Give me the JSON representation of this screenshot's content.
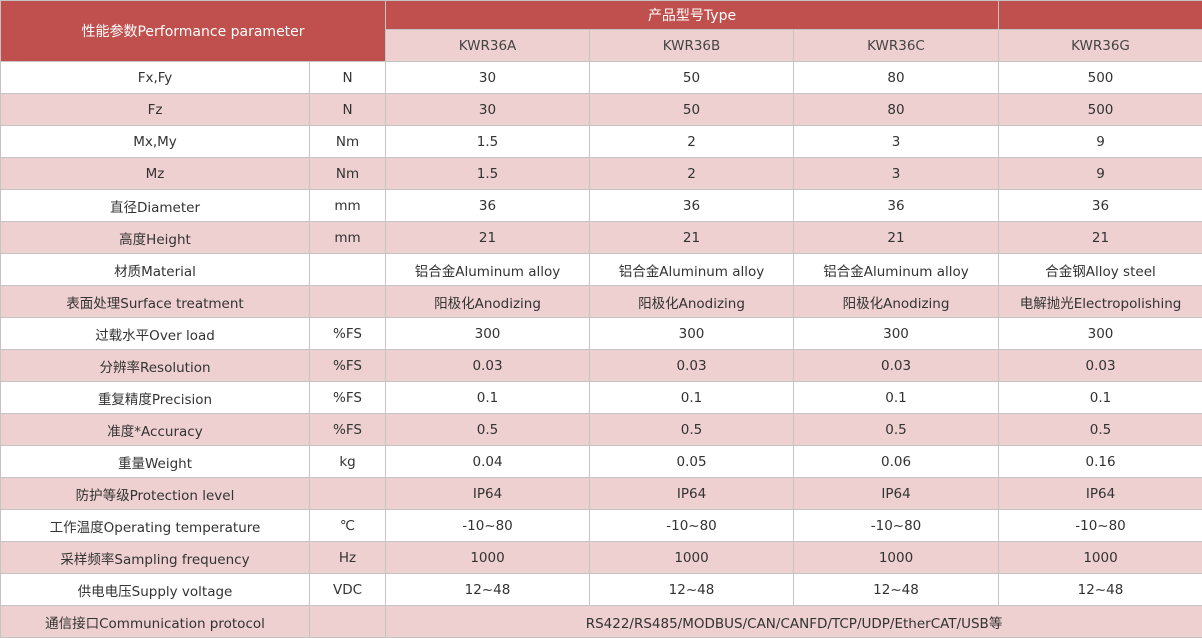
{
  "header": {
    "param_title": "性能参数Performance parameter",
    "type_title": "产品型号Type",
    "models": [
      "KWR36A",
      "KWR36B",
      "KWR36C",
      "KWR36G"
    ]
  },
  "rows": [
    {
      "param": "Fx,Fy",
      "unit": "N",
      "values": [
        "30",
        "50",
        "80",
        "500"
      ]
    },
    {
      "param": "Fz",
      "unit": "N",
      "values": [
        "30",
        "50",
        "80",
        "500"
      ]
    },
    {
      "param": "Mx,My",
      "unit": "Nm",
      "values": [
        "1.5",
        "2",
        "3",
        "9"
      ]
    },
    {
      "param": "Mz",
      "unit": "Nm",
      "values": [
        "1.5",
        "2",
        "3",
        "9"
      ]
    },
    {
      "param": "直径Diameter",
      "unit": "mm",
      "values": [
        "36",
        "36",
        "36",
        "36"
      ]
    },
    {
      "param": "高度Height",
      "unit": "mm",
      "values": [
        "21",
        "21",
        "21",
        "21"
      ]
    },
    {
      "param": "材质Material",
      "unit": "",
      "values": [
        "铝合金Aluminum alloy",
        "铝合金Aluminum alloy",
        "铝合金Aluminum alloy",
        "合金钢Alloy steel"
      ]
    },
    {
      "param": "表面处理Surface treatment",
      "unit": "",
      "values": [
        "阳极化Anodizing",
        "阳极化Anodizing",
        "阳极化Anodizing",
        "电解抛光Electropolishing"
      ]
    },
    {
      "param": "过载水平Over load",
      "unit": "%FS",
      "values": [
        "300",
        "300",
        "300",
        "300"
      ]
    },
    {
      "param": "分辨率Resolution",
      "unit": "%FS",
      "values": [
        "0.03",
        "0.03",
        "0.03",
        "0.03"
      ]
    },
    {
      "param": "重复精度Precision",
      "unit": "%FS",
      "values": [
        "0.1",
        "0.1",
        "0.1",
        "0.1"
      ]
    },
    {
      "param": "准度*Accuracy",
      "unit": "%FS",
      "values": [
        "0.5",
        "0.5",
        "0.5",
        "0.5"
      ]
    },
    {
      "param": "重量Weight",
      "unit": "kg",
      "values": [
        "0.04",
        "0.05",
        "0.06",
        "0.16"
      ]
    },
    {
      "param": "防护等级Protection level",
      "unit": "",
      "values": [
        "IP64",
        "IP64",
        "IP64",
        "IP64"
      ]
    },
    {
      "param": "工作温度Operating temperature",
      "unit": "℃",
      "values": [
        "-10~80",
        "-10~80",
        "-10~80",
        "-10~80"
      ]
    },
    {
      "param": "采样频率Sampling frequency",
      "unit": "Hz",
      "values": [
        "1000",
        "1000",
        "1000",
        "1000"
      ]
    },
    {
      "param": "供电电压Supply voltage",
      "unit": "VDC",
      "values": [
        "12~48",
        "12~48",
        "12~48",
        "12~48"
      ]
    }
  ],
  "protocol_row": {
    "param": "通信接口Communication protocol",
    "unit": "",
    "value": "RS422/RS485/MODBUS/CAN/CANFD/TCP/UDP/EtherCAT/USB等"
  },
  "colors": {
    "header_red": "#c0504d",
    "stripe_pink": "#edd0cf",
    "text": "#333333"
  }
}
